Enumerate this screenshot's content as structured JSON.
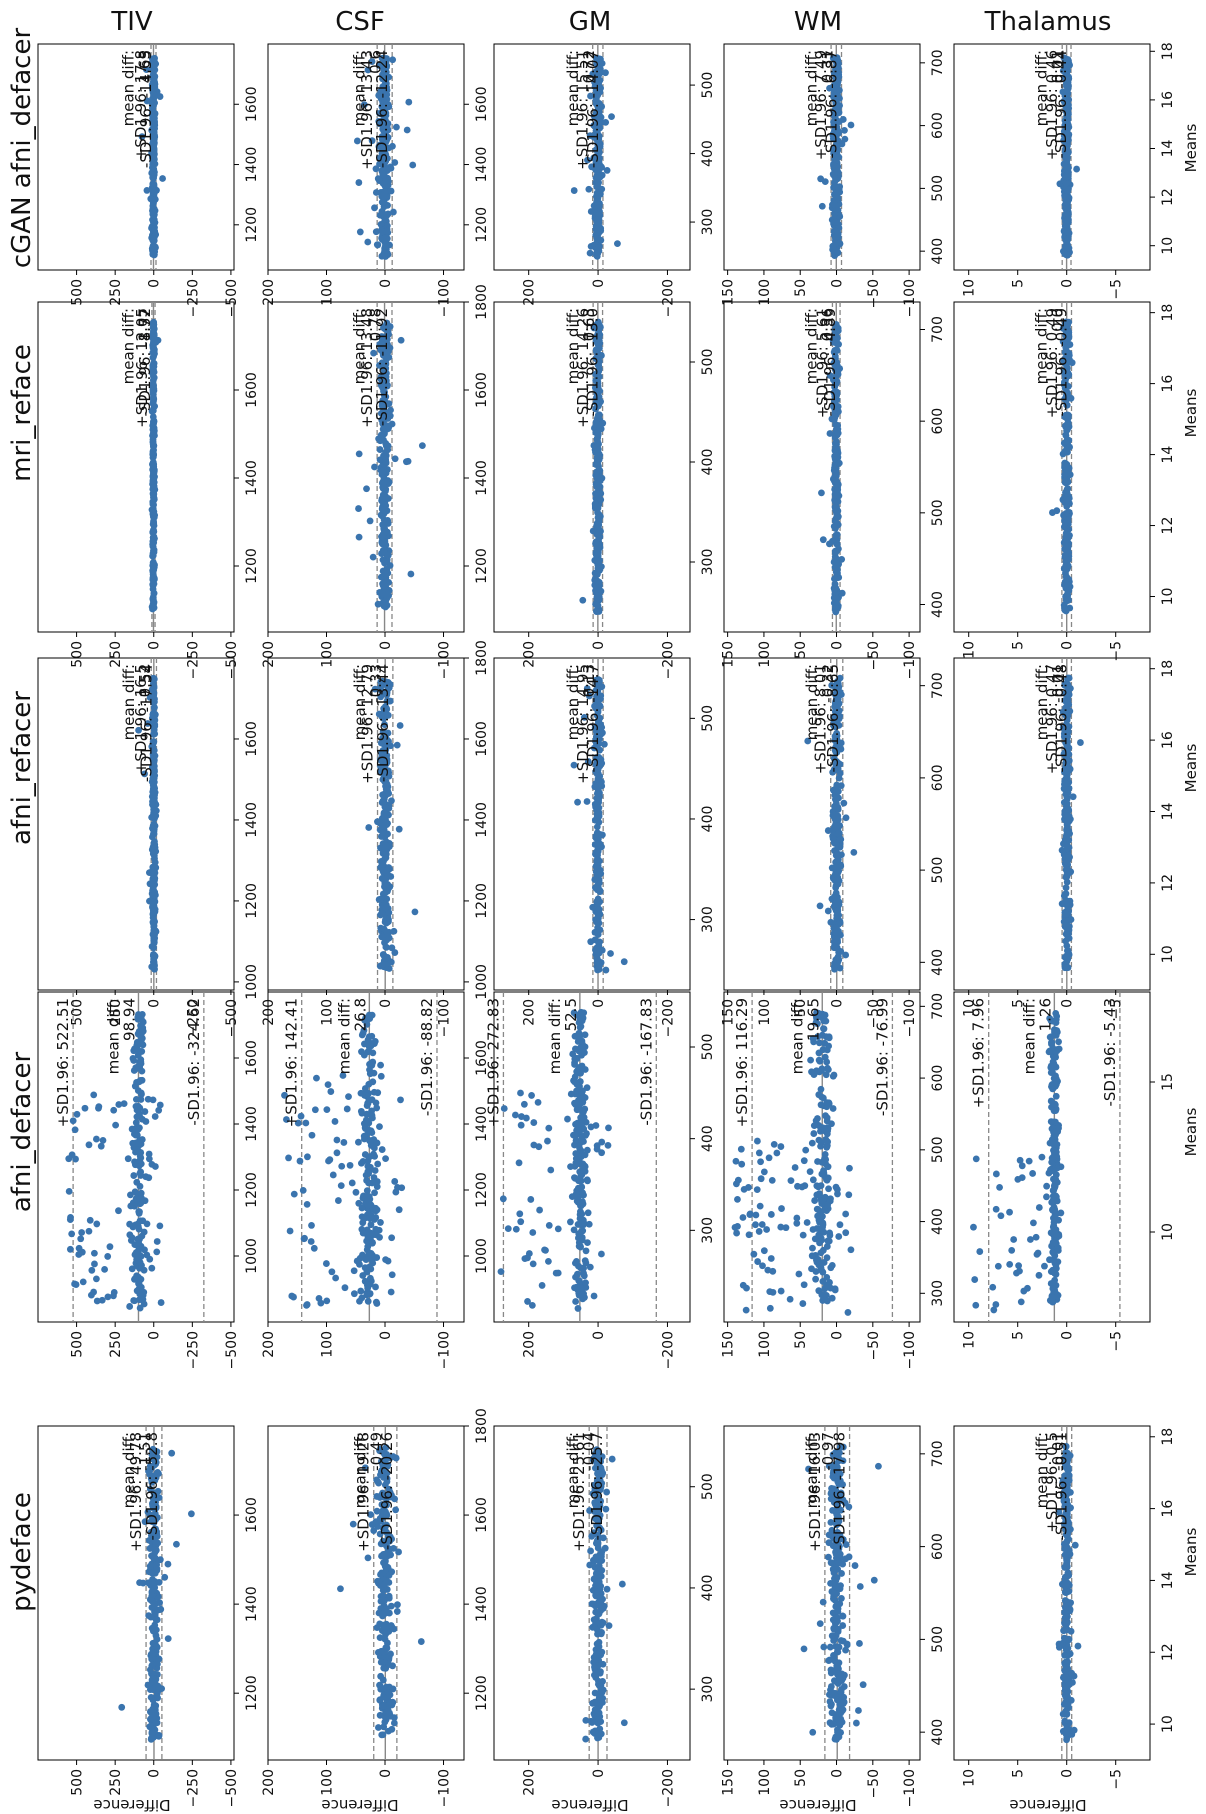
{
  "column_titles": [
    "TIV",
    "CSF",
    "GM",
    "WM",
    "Thalamus"
  ],
  "row_titles": [
    "pydeface",
    "afni_defacer",
    "afni_refacer",
    "mri_reface",
    "cGAN afni_defacer"
  ],
  "axis_labels": {
    "difference": "Difference",
    "means": "Means"
  },
  "colors": {
    "points": "#3a74ae",
    "mean_line": "#888888",
    "sd_line": "#888888"
  },
  "chart_data": [
    {
      "type": "scatter",
      "method": "pydeface",
      "measure": "TIV",
      "upper_label": "+SD1.96: 49.78",
      "mean_label": "mean diff:",
      "mean_value": "-1.51",
      "lower_label": "-SD1.96: -52.8",
      "mean": -1.51,
      "upper": 49.78,
      "lower": -52.8,
      "xlim": [
        1050,
        1800
      ],
      "xticks": [
        1200,
        1400,
        1600
      ],
      "ylim": [
        -520,
        750
      ],
      "yticks": [
        500,
        250,
        0,
        -250,
        -500
      ],
      "spread": 20,
      "outlier_frac": 0.06,
      "outlier_spread": 120
    },
    {
      "type": "scatter",
      "method": "pydeface",
      "measure": "CSF",
      "upper_label": "+SD1.96: 19.28",
      "mean_label": "mean diff:",
      "mean_value": "-0.49",
      "lower_label": "-SD1.96: -20.26",
      "mean": -0.49,
      "upper": 19.28,
      "lower": -20.26,
      "xlim": [
        1050,
        1800
      ],
      "xticks": [
        1200,
        1400,
        1600,
        1800
      ],
      "ylim": [
        -135,
        200
      ],
      "yticks": [
        200,
        100,
        0,
        -100
      ],
      "spread": 8,
      "outlier_frac": 0.08,
      "outlier_spread": 40
    },
    {
      "type": "scatter",
      "method": "pydeface",
      "measure": "GM",
      "upper_label": "+SD1.96: 25.61",
      "mean_label": "mean diff:",
      "mean_value": "-0.04",
      "lower_label": "-SD1.96: -25.7",
      "mean": -0.04,
      "upper": 25.61,
      "lower": -25.7,
      "xlim": [
        230,
        560
      ],
      "xticks": [
        300,
        400,
        500
      ],
      "ylim": [
        -265,
        300
      ],
      "yticks": [
        200,
        0,
        -200
      ],
      "spread": 10,
      "outlier_frac": 0.08,
      "outlier_spread": 45
    },
    {
      "type": "scatter",
      "method": "pydeface",
      "measure": "WM",
      "upper_label": "+SD1.96: 16.03",
      "mean_label": "mean diff:",
      "mean_value": "-0.97",
      "lower_label": "-SD1.96: -17.98",
      "mean": -0.97,
      "upper": 16.03,
      "lower": -17.98,
      "xlim": [
        370,
        730
      ],
      "xticks": [
        400,
        500,
        600,
        700
      ],
      "ylim": [
        -115,
        155
      ],
      "yticks": [
        150,
        100,
        50,
        0,
        -50,
        -100
      ],
      "spread": 7,
      "outlier_frac": 0.08,
      "outlier_spread": 28
    },
    {
      "type": "scatter",
      "method": "pydeface",
      "measure": "Thalamus",
      "upper_label": "+SD1.96: 0.5",
      "mean_label": "mean diff:",
      "mean_value": "-0.01",
      "lower_label": "-SD1.96: -0.51",
      "mean": -0.01,
      "upper": 0.5,
      "lower": -0.51,
      "xlim": [
        9,
        18.3
      ],
      "xticks": [
        10,
        12,
        14,
        16,
        18
      ],
      "ylim": [
        -8.5,
        11.5
      ],
      "yticks": [
        10,
        5,
        0,
        -5
      ],
      "spread": 0.22,
      "outlier_frac": 0.05,
      "outlier_spread": 0.7
    },
    {
      "type": "scatter",
      "method": "afni_defacer",
      "measure": "TIV",
      "upper_label": "+SD1.96: 522.51",
      "mean_label": "mean diff:",
      "mean_value": "98.94",
      "lower_label": "-SD1.96: -324.62",
      "mean": 98.94,
      "upper": 522.51,
      "lower": -324.62,
      "xlim": [
        800,
        1800
      ],
      "xticks": [
        1000,
        1200,
        1400,
        1600
      ],
      "ylim": [
        -520,
        750
      ],
      "yticks": [
        500,
        250,
        0,
        -250,
        -500
      ],
      "spread": 20,
      "outlier_frac": 0.3,
      "outlier_spread": 0,
      "outlier_range": [
        -50,
        560
      ],
      "outlier_xmax": 1500
    },
    {
      "type": "scatter",
      "method": "afni_defacer",
      "measure": "CSF",
      "upper_label": "+SD1.96: 142.41",
      "mean_label": "mean diff:",
      "mean_value": "26.8",
      "lower_label": "-SD1.96: -88.82",
      "mean": 26.8,
      "upper": 142.41,
      "lower": -88.82,
      "xlim": [
        800,
        1800
      ],
      "xticks": [
        1000,
        1200,
        1400,
        1600
      ],
      "ylim": [
        -135,
        200
      ],
      "yticks": [
        200,
        100,
        0,
        -100
      ],
      "spread": 8,
      "outlier_frac": 0.3,
      "outlier_spread": 0,
      "outlier_range": [
        -30,
        175
      ],
      "outlier_xmax": 1550
    },
    {
      "type": "scatter",
      "method": "afni_defacer",
      "measure": "GM",
      "upper_label": "+SD1.96: 272.83",
      "mean_label": "mean diff:",
      "mean_value": "52.5",
      "lower_label": "-SD1.96: -167.83",
      "mean": 52.5,
      "upper": 272.83,
      "lower": -167.83,
      "xlim": [
        200,
        560
      ],
      "xticks": [
        300,
        400,
        500
      ],
      "ylim": [
        -265,
        300
      ],
      "yticks": [
        200,
        0,
        -200
      ],
      "spread": 10,
      "outlier_frac": 0.3,
      "outlier_spread": 0,
      "outlier_range": [
        -30,
        280
      ],
      "outlier_xmax": 450
    },
    {
      "type": "scatter",
      "method": "afni_defacer",
      "measure": "WM",
      "upper_label": "+SD1.96: 116.29",
      "mean_label": "mean diff:",
      "mean_value": "19.65",
      "lower_label": "-SD1.96: -76.99",
      "mean": 19.65,
      "upper": 116.29,
      "lower": -76.99,
      "xlim": [
        260,
        720
      ],
      "xticks": [
        300,
        400,
        500,
        600,
        700
      ],
      "ylim": [
        -115,
        155
      ],
      "yticks": [
        150,
        100,
        50,
        0,
        -50,
        -100
      ],
      "spread": 7,
      "outlier_frac": 0.3,
      "outlier_spread": 0,
      "outlier_range": [
        -20,
        140
      ],
      "outlier_xmax": 520
    },
    {
      "type": "scatter",
      "method": "afni_defacer",
      "measure": "Thalamus",
      "upper_label": "+SD1.96: 7.96",
      "mean_label": "mean diff:",
      "mean_value": "1.26",
      "lower_label": "-SD1.96: -5.43",
      "mean": 1.26,
      "upper": 7.96,
      "lower": -5.43,
      "xlim": [
        7,
        18
      ],
      "xticks": [
        10,
        15
      ],
      "ylim": [
        -8.5,
        11.5
      ],
      "yticks": [
        10,
        5,
        0,
        -5
      ],
      "spread": 0.22,
      "outlier_frac": 0.18,
      "outlier_spread": 0,
      "outlier_range": [
        1,
        10.5
      ],
      "outlier_xmax": 12.5
    },
    {
      "type": "scatter",
      "method": "afni_refacer",
      "measure": "TIV",
      "upper_label": "+SD1.96: 16.5",
      "mean_label": "mean diff:",
      "mean_value": "-0.52",
      "lower_label": "-SD1.96: -17.54",
      "mean": -0.52,
      "upper": 16.5,
      "lower": -17.54,
      "xlim": [
        980,
        1800
      ],
      "xticks": [
        1000,
        1200,
        1400,
        1600
      ],
      "ylim": [
        -520,
        750
      ],
      "yticks": [
        500,
        250,
        0,
        -250,
        -500
      ],
      "spread": 10,
      "outlier_frac": 0.03,
      "outlier_spread": 60
    },
    {
      "type": "scatter",
      "method": "afni_refacer",
      "measure": "CSF",
      "upper_label": "+SD1.96: 12.79",
      "mean_label": "mean diff:",
      "mean_value": "-0.33",
      "lower_label": "-SD1.96: -13.44",
      "mean": -0.33,
      "upper": 12.79,
      "lower": -13.44,
      "xlim": [
        980,
        1800
      ],
      "xticks": [
        1000,
        1200,
        1400,
        1600,
        1800
      ],
      "ylim": [
        -135,
        200
      ],
      "yticks": [
        200,
        100,
        0,
        -100
      ],
      "spread": 7,
      "outlier_frac": 0.06,
      "outlier_spread": 25
    },
    {
      "type": "scatter",
      "method": "afni_refacer",
      "measure": "GM",
      "upper_label": "+SD1.96: 14.95",
      "mean_label": "mean diff:",
      "mean_value": "0.13",
      "lower_label": "-SD1.96: -14.7",
      "mean": 0.13,
      "upper": 14.95,
      "lower": -14.7,
      "xlim": [
        230,
        560
      ],
      "xticks": [
        300,
        400,
        500
      ],
      "ylim": [
        -265,
        300
      ],
      "yticks": [
        200,
        0,
        -200
      ],
      "spread": 7,
      "outlier_frac": 0.05,
      "outlier_spread": 25
    },
    {
      "type": "scatter",
      "method": "afni_refacer",
      "measure": "WM",
      "upper_label": "+SD1.96: 8.01",
      "mean_label": "mean diff:",
      "mean_value": "-0.32",
      "lower_label": "-SD1.96: -8.65",
      "mean": -0.32,
      "upper": 8.01,
      "lower": -8.65,
      "xlim": [
        370,
        730
      ],
      "xticks": [
        400,
        500,
        600,
        700
      ],
      "ylim": [
        -115,
        155
      ],
      "yticks": [
        150,
        100,
        50,
        0,
        -50,
        -100
      ],
      "spread": 4,
      "outlier_frac": 0.05,
      "outlier_spread": 18
    },
    {
      "type": "scatter",
      "method": "afni_refacer",
      "measure": "Thalamus",
      "upper_label": "+SD1.96: 0.47",
      "mean_label": "mean diff:",
      "mean_value": "-0.01",
      "lower_label": "-SD1.96: -0.48",
      "mean": -0.01,
      "upper": 0.47,
      "lower": -0.48,
      "xlim": [
        9,
        18.3
      ],
      "xticks": [
        10,
        12,
        14,
        16,
        18
      ],
      "ylim": [
        -8.5,
        11.5
      ],
      "yticks": [
        10,
        5,
        0,
        -5
      ],
      "spread": 0.2,
      "outlier_frac": 0.04,
      "outlier_spread": 0.6
    },
    {
      "type": "scatter",
      "method": "mri_reface",
      "measure": "TIV",
      "upper_label": "+SD1.96: 12.05",
      "mean_label": "mean diff:",
      "mean_value": "1.77",
      "lower_label": "-SD1.96: -8.52",
      "mean": 1.77,
      "upper": 12.05,
      "lower": -8.52,
      "xlim": [
        1050,
        1800
      ],
      "xticks": [
        1200,
        1400,
        1600
      ],
      "ylim": [
        -520,
        750
      ],
      "yticks": [
        500,
        250,
        0,
        -250,
        -500
      ],
      "spread": 5,
      "outlier_frac": 0.02,
      "outlier_spread": 20
    },
    {
      "type": "scatter",
      "method": "mri_reface",
      "measure": "CSF",
      "upper_label": "+SD1.96: 13.48",
      "mean_label": "mean diff:",
      "mean_value": "0.78",
      "lower_label": "-SD1.96: -11.92",
      "mean": 0.78,
      "upper": 13.48,
      "lower": -11.92,
      "xlim": [
        1050,
        1800
      ],
      "xticks": [
        1200,
        1400,
        1600,
        1800
      ],
      "ylim": [
        -135,
        200
      ],
      "yticks": [
        200,
        100,
        0,
        -100
      ],
      "spread": 7,
      "outlier_frac": 0.07,
      "outlier_spread": 25
    },
    {
      "type": "scatter",
      "method": "mri_reface",
      "measure": "GM",
      "upper_label": "+SD1.96: 14.26",
      "mean_label": "mean diff:",
      "mean_value": "0.63",
      "lower_label": "-SD1.96: -13.0",
      "mean": 0.63,
      "upper": 14.26,
      "lower": -13.0,
      "xlim": [
        230,
        560
      ],
      "xticks": [
        300,
        400,
        500
      ],
      "ylim": [
        -265,
        300
      ],
      "yticks": [
        200,
        0,
        -200
      ],
      "spread": 7,
      "outlier_frac": 0.05,
      "outlier_spread": 25
    },
    {
      "type": "scatter",
      "method": "mri_reface",
      "measure": "WM",
      "upper_label": "+SD1.96: 5.61",
      "mean_label": "mean diff:",
      "mean_value": "0.36",
      "lower_label": "-SD1.96: -4.89",
      "mean": 0.36,
      "upper": 5.61,
      "lower": -4.89,
      "xlim": [
        370,
        730
      ],
      "xticks": [
        400,
        500,
        600,
        700
      ],
      "ylim": [
        -115,
        155
      ],
      "yticks": [
        150,
        100,
        50,
        0,
        -50,
        -100
      ],
      "spread": 3,
      "outlier_frac": 0.04,
      "outlier_spread": 10
    },
    {
      "type": "scatter",
      "method": "mri_reface",
      "measure": "Thalamus",
      "upper_label": "+SD1.96: 0.49",
      "mean_label": "mean diff:",
      "mean_value": "0.0",
      "lower_label": "-SD1.96: -0.49",
      "mean": 0.0,
      "upper": 0.49,
      "lower": -0.49,
      "xlim": [
        9,
        18.3
      ],
      "xticks": [
        10,
        12,
        14,
        16,
        18
      ],
      "ylim": [
        -8.5,
        11.5
      ],
      "yticks": [
        10,
        5,
        0,
        -5
      ],
      "spread": 0.2,
      "outlier_frac": 0.04,
      "outlier_spread": 0.6
    },
    {
      "type": "scatter",
      "method": "cGAN afni_defacer",
      "measure": "TIV",
      "upper_label": "+SD1.96: 17.8",
      "mean_label": "mean diff:",
      "mean_value": "1.63",
      "lower_label": "-SD1.96: -14.55",
      "mean": 1.63,
      "upper": 17.8,
      "lower": -14.55,
      "xlim": [
        1050,
        1800
      ],
      "xticks": [
        1200,
        1400,
        1600
      ],
      "ylim": [
        -520,
        750
      ],
      "yticks": [
        500,
        250,
        0,
        -250,
        -500
      ],
      "spread": 8,
      "outlier_frac": 0.03,
      "outlier_spread": 50
    },
    {
      "type": "scatter",
      "method": "cGAN afni_defacer",
      "measure": "CSF",
      "upper_label": "+SD1.96: 13.43",
      "mean_label": "mean diff:",
      "mean_value": "0.6",
      "lower_label": "-SD1.96: -12.24",
      "mean": 0.6,
      "upper": 13.43,
      "lower": -12.24,
      "xlim": [
        1050,
        1800
      ],
      "xticks": [
        1200,
        1400,
        1600
      ],
      "ylim": [
        -135,
        200
      ],
      "yticks": [
        200,
        100,
        0,
        -100
      ],
      "spread": 7,
      "outlier_frac": 0.07,
      "outlier_spread": 25
    },
    {
      "type": "scatter",
      "method": "cGAN afni_defacer",
      "measure": "GM",
      "upper_label": "+SD1.96: 15.51",
      "mean_label": "mean diff:",
      "mean_value": "0.72",
      "lower_label": "-SD1.96: -14.07",
      "mean": 0.72,
      "upper": 15.51,
      "lower": -14.07,
      "xlim": [
        230,
        560
      ],
      "xticks": [
        300,
        400,
        500
      ],
      "ylim": [
        -265,
        300
      ],
      "yticks": [
        200,
        0,
        -200
      ],
      "spread": 7,
      "outlier_frac": 0.05,
      "outlier_spread": 25
    },
    {
      "type": "scatter",
      "method": "cGAN afni_defacer",
      "measure": "WM",
      "upper_label": "+SD1.96: 7.49",
      "mean_label": "mean diff:",
      "mean_value": "0.31",
      "lower_label": "-SD1.96: -6.87",
      "mean": 0.31,
      "upper": 7.49,
      "lower": -6.87,
      "xlim": [
        370,
        730
      ],
      "xticks": [
        400,
        500,
        600,
        700
      ],
      "ylim": [
        -115,
        155
      ],
      "yticks": [
        150,
        100,
        50,
        0,
        -50,
        -100
      ],
      "spread": 4,
      "outlier_frac": 0.05,
      "outlier_spread": 15
    },
    {
      "type": "scatter",
      "method": "cGAN afni_defacer",
      "measure": "Thalamus",
      "upper_label": "+SD1.96: 0.46",
      "mean_label": "mean diff:",
      "mean_value": "0.01",
      "lower_label": "-SD1.96: -0.44",
      "mean": 0.01,
      "upper": 0.46,
      "lower": -0.44,
      "xlim": [
        9,
        18.3
      ],
      "xticks": [
        10,
        12,
        14,
        16,
        18
      ],
      "ylim": [
        -8.5,
        11.5
      ],
      "yticks": [
        10,
        5,
        0,
        -5
      ],
      "spread": 0.2,
      "outlier_frac": 0.04,
      "outlier_spread": 0.6
    }
  ]
}
